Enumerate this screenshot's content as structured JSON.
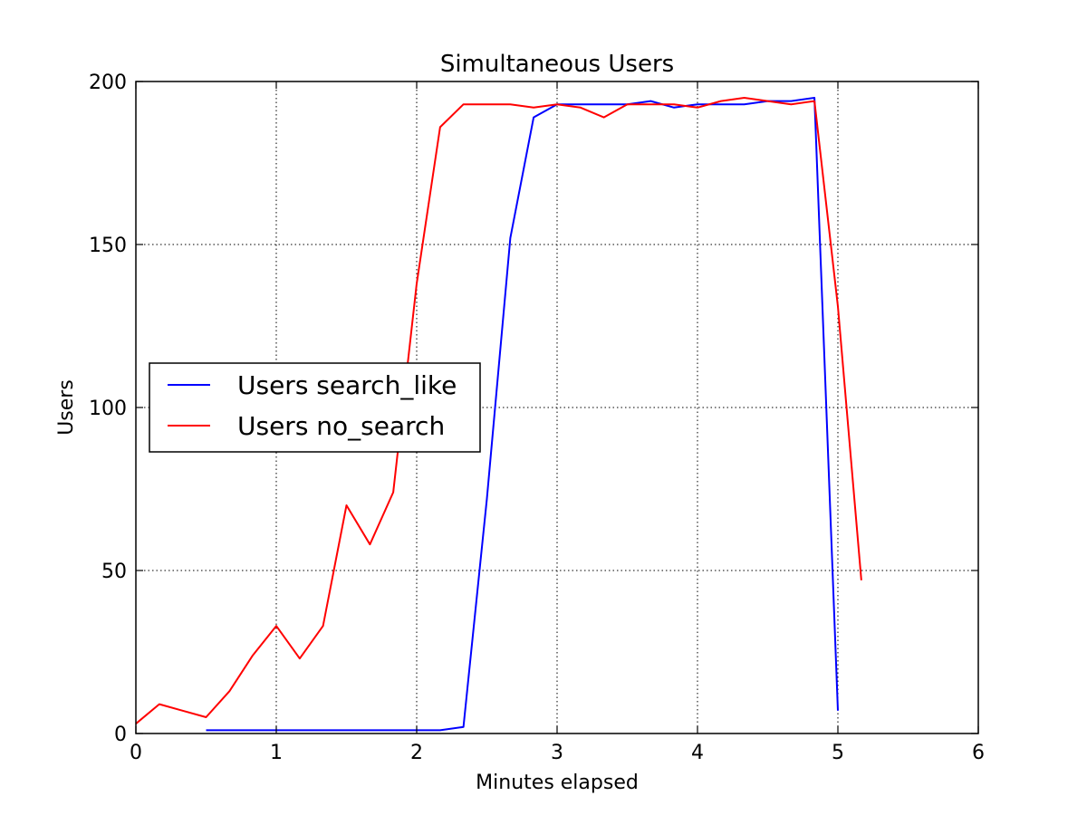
{
  "chart_data": {
    "type": "line",
    "title": "Simultaneous Users",
    "xlabel": "Minutes elapsed",
    "ylabel": "Users",
    "xlim": [
      0,
      6
    ],
    "ylim": [
      0,
      200
    ],
    "xticks": [
      0,
      1,
      2,
      3,
      4,
      5,
      6
    ],
    "yticks": [
      0,
      50,
      100,
      150,
      200
    ],
    "grid": true,
    "legend_position": "center-left",
    "series": [
      {
        "name": "Users search_like",
        "color": "#0000ff",
        "x": [
          0.5,
          0.667,
          0.833,
          1.0,
          1.167,
          1.333,
          1.5,
          1.667,
          1.833,
          2.0,
          2.167,
          2.333,
          2.5,
          2.667,
          2.833,
          3.0,
          3.167,
          3.333,
          3.5,
          3.667,
          3.833,
          4.0,
          4.167,
          4.333,
          4.5,
          4.667,
          4.833,
          5.0
        ],
        "y": [
          1,
          1,
          1,
          1,
          1,
          1,
          1,
          1,
          1,
          1,
          1,
          2,
          72,
          152,
          189,
          193,
          193,
          193,
          193,
          194,
          192,
          193,
          193,
          193,
          194,
          194,
          195,
          7
        ]
      },
      {
        "name": "Users no_search",
        "color": "#ff0000",
        "x": [
          0.0,
          0.167,
          0.333,
          0.5,
          0.667,
          0.833,
          1.0,
          1.167,
          1.333,
          1.5,
          1.667,
          1.833,
          2.0,
          2.167,
          2.333,
          2.5,
          2.667,
          2.833,
          3.0,
          3.167,
          3.333,
          3.5,
          3.667,
          3.833,
          4.0,
          4.167,
          4.333,
          4.5,
          4.667,
          4.833,
          5.0,
          5.167
        ],
        "y": [
          3,
          9,
          7,
          5,
          13,
          24,
          33,
          23,
          33,
          70,
          58,
          74,
          138,
          186,
          193,
          193,
          193,
          192,
          193,
          192,
          189,
          193,
          193,
          193,
          192,
          194,
          195,
          194,
          193,
          194,
          131,
          47
        ]
      }
    ]
  }
}
